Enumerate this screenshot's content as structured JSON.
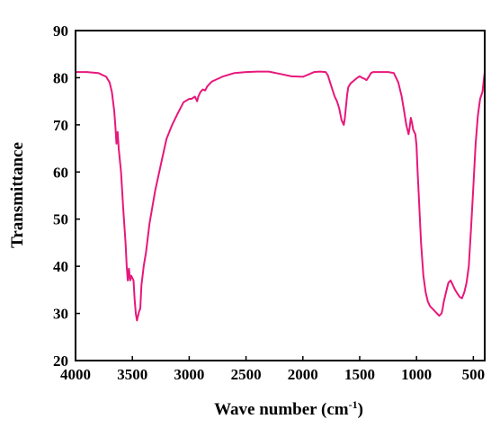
{
  "chart_data": {
    "type": "line",
    "title": "",
    "xlabel": "Wave number (cm",
    "xlabel_sup": "-1",
    "xlabel_close": ")",
    "ylabel": "Transmittance",
    "xlim": [
      4000,
      400
    ],
    "ylim": [
      20,
      90
    ],
    "x_reversed": true,
    "grid": false,
    "legend": "none",
    "x_ticks": [
      4000,
      3500,
      3000,
      2500,
      2000,
      1500,
      1000,
      500
    ],
    "x_tick_labels": [
      "4000",
      "3500",
      "3000",
      "2500",
      "2000",
      "1500",
      "1000",
      "500"
    ],
    "y_ticks": [
      20,
      30,
      40,
      50,
      60,
      70,
      80,
      90
    ],
    "y_tick_labels": [
      "20",
      "30",
      "40",
      "50",
      "60",
      "70",
      "80",
      "90"
    ],
    "colors": {
      "series": "#e8177b",
      "axes": "#000000"
    },
    "series": [
      {
        "name": "",
        "x": [
          4000,
          3900,
          3800,
          3730,
          3700,
          3680,
          3660,
          3650,
          3640,
          3630,
          3620,
          3600,
          3580,
          3560,
          3550,
          3540,
          3530,
          3520,
          3510,
          3500,
          3490,
          3480,
          3470,
          3460,
          3450,
          3440,
          3430,
          3420,
          3400,
          3380,
          3350,
          3300,
          3250,
          3200,
          3150,
          3100,
          3050,
          3000,
          2980,
          2950,
          2930,
          2920,
          2900,
          2880,
          2860,
          2840,
          2800,
          2700,
          2600,
          2500,
          2400,
          2300,
          2200,
          2100,
          2000,
          1950,
          1900,
          1850,
          1800,
          1780,
          1760,
          1740,
          1720,
          1700,
          1680,
          1660,
          1640,
          1630,
          1620,
          1610,
          1600,
          1580,
          1560,
          1540,
          1520,
          1500,
          1480,
          1460,
          1440,
          1420,
          1400,
          1380,
          1350,
          1300,
          1250,
          1200,
          1160,
          1130,
          1110,
          1090,
          1070,
          1060,
          1050,
          1040,
          1030,
          1020,
          1010,
          1000,
          990,
          980,
          960,
          940,
          920,
          900,
          880,
          860,
          840,
          820,
          800,
          780,
          770,
          760,
          740,
          720,
          700,
          680,
          660,
          640,
          620,
          600,
          580,
          560,
          540,
          520,
          500,
          480,
          460,
          440,
          420,
          410,
          400
        ],
        "y": [
          81.2,
          81.2,
          81.0,
          80.2,
          79.0,
          77.0,
          73.0,
          70.0,
          66.0,
          68.5,
          65.0,
          60.0,
          52.0,
          45.0,
          40.0,
          37.0,
          39.5,
          37.0,
          38.0,
          37.5,
          37.0,
          33.0,
          30.0,
          28.5,
          29.5,
          30.5,
          31.0,
          36.0,
          40.0,
          43.0,
          49.0,
          56.0,
          61.5,
          67.0,
          70.0,
          72.5,
          74.8,
          75.5,
          75.5,
          76.0,
          75.0,
          76.0,
          77.0,
          77.5,
          77.3,
          78.2,
          79.2,
          80.3,
          81.0,
          81.2,
          81.3,
          81.3,
          80.8,
          80.3,
          80.2,
          80.7,
          81.2,
          81.3,
          81.2,
          80.5,
          79.0,
          77.5,
          76.0,
          75.0,
          73.5,
          71.0,
          70.0,
          71.5,
          74.0,
          76.5,
          78.0,
          78.8,
          79.2,
          79.6,
          80.0,
          80.3,
          80.0,
          79.8,
          79.5,
          80.2,
          81.0,
          81.2,
          81.2,
          81.2,
          81.2,
          81.0,
          79.0,
          76.0,
          73.0,
          70.0,
          68.0,
          69.5,
          71.5,
          70.5,
          69.0,
          68.5,
          68.0,
          65.5,
          60.0,
          55.0,
          45.0,
          38.0,
          34.5,
          32.5,
          31.5,
          31.0,
          30.5,
          30.0,
          29.5,
          30.0,
          31.0,
          32.5,
          34.5,
          36.5,
          37.0,
          36.0,
          35.0,
          34.2,
          33.5,
          33.2,
          34.5,
          36.5,
          40.0,
          48.0,
          57.0,
          66.0,
          72.0,
          75.5,
          77.0,
          79.0,
          81.2
        ]
      }
    ]
  }
}
